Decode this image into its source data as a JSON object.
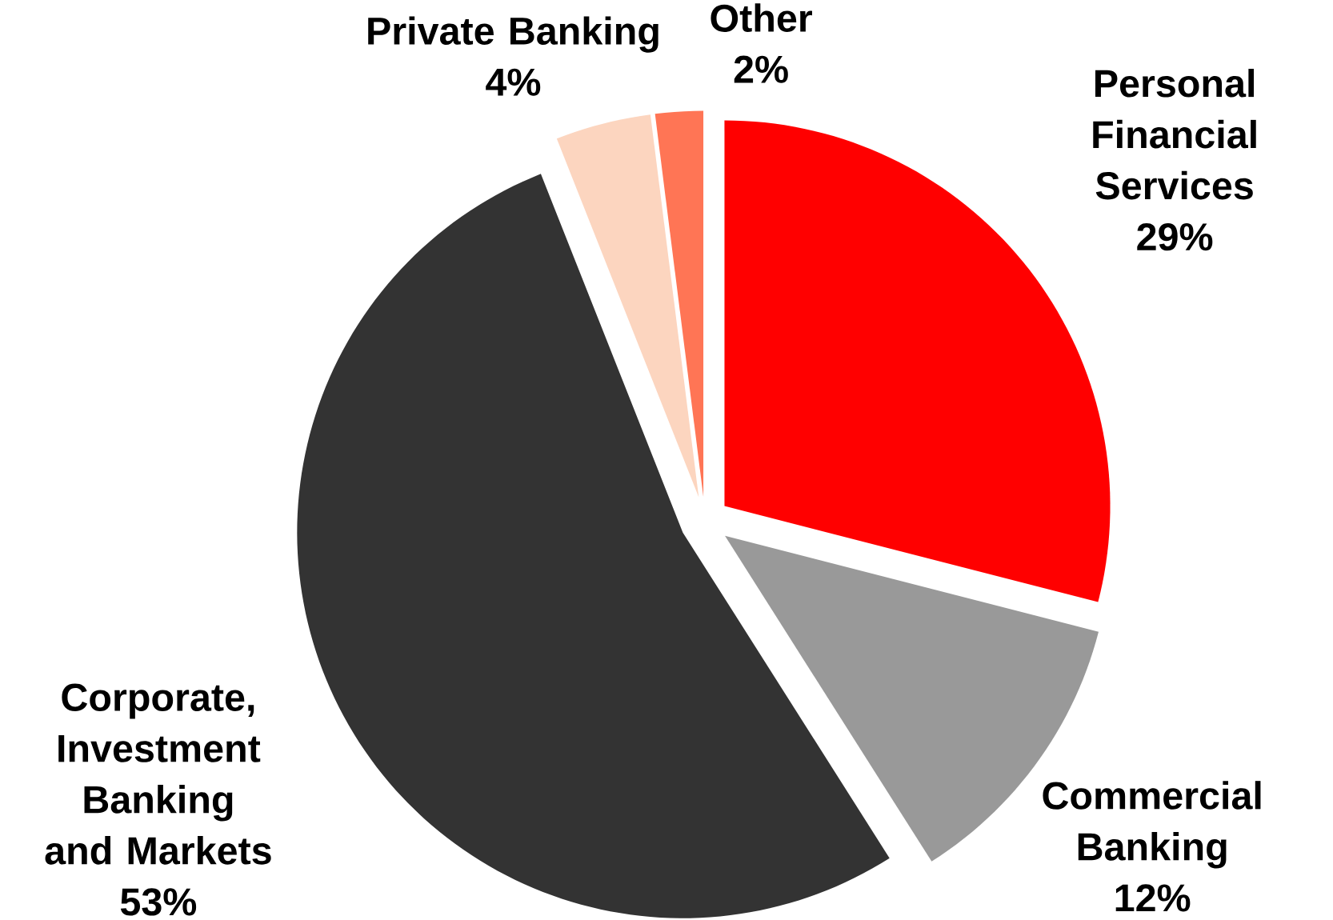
{
  "chart_data": {
    "type": "pie",
    "categories": [
      "Personal Financial Services",
      "Commercial Banking",
      "Corporate, Investment Banking and Markets",
      "Private Banking",
      "Other"
    ],
    "values": [
      29,
      12,
      53,
      4,
      2
    ],
    "value_labels": [
      "29%",
      "12%",
      "53%",
      "4%",
      "2%"
    ],
    "colors": [
      "#ff0000",
      "#999999",
      "#333333",
      "#fcd5bf",
      "#ff7555"
    ]
  }
}
